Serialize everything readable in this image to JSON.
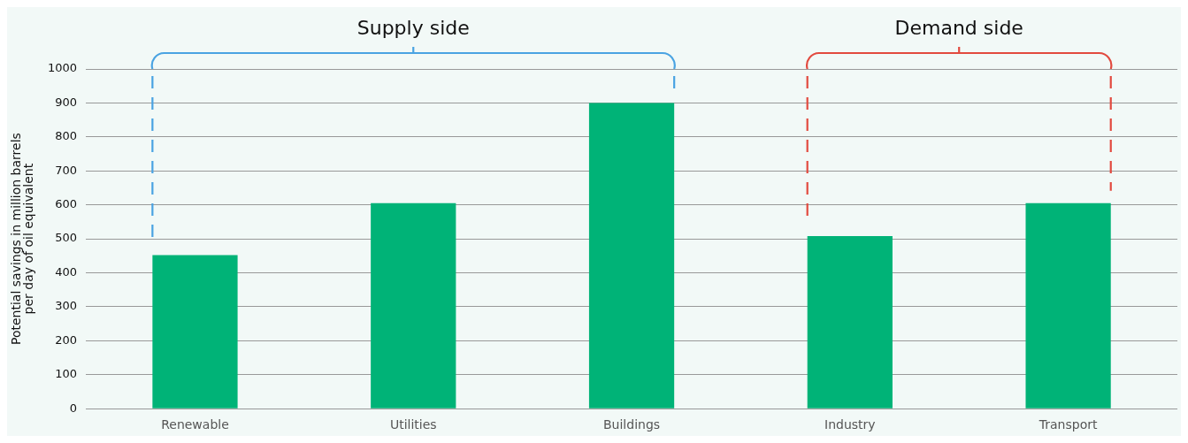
{
  "chart_data": {
    "type": "bar",
    "ylabel": "Potential savings in million barrels per day of oil equivalent",
    "categories": [
      "Renewable",
      "Utilities",
      "Buildings",
      "Industry",
      "Transport"
    ],
    "values": [
      452,
      605,
      900,
      508,
      605
    ],
    "color": "#00b377",
    "ylim": [
      0,
      1000
    ],
    "yticks": [
      0,
      100,
      200,
      300,
      400,
      500,
      600,
      700,
      800,
      900,
      1000
    ],
    "grid": "y",
    "annotations": [
      "Supply side",
      "Demand side"
    ]
  }
}
